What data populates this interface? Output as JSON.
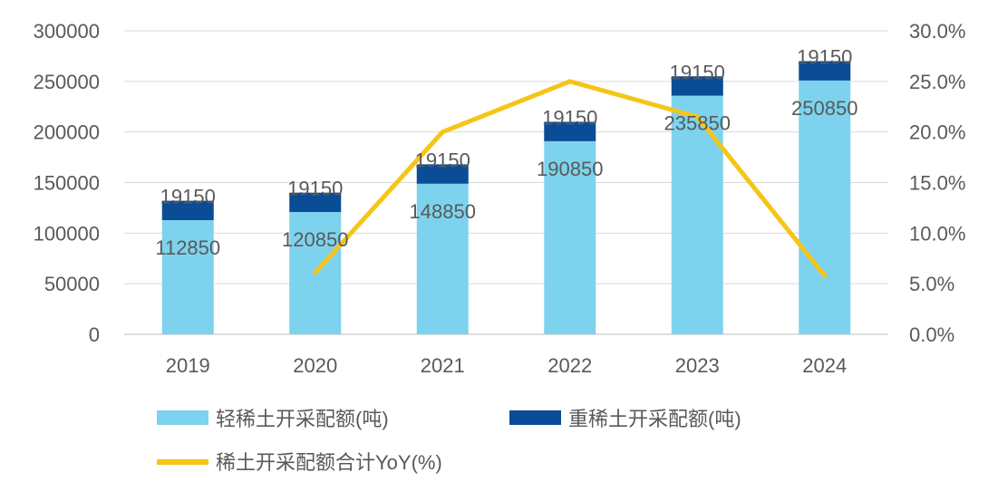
{
  "chart_data": {
    "type": "bar",
    "stacked": true,
    "categories": [
      "2019",
      "2020",
      "2021",
      "2022",
      "2023",
      "2024"
    ],
    "series": [
      {
        "name": "轻稀土开采配额(吨)",
        "type": "bar",
        "axis": "left",
        "color": "#7dd3ee",
        "values": [
          112850,
          120850,
          148850,
          190850,
          235850,
          250850
        ],
        "labels": [
          "112850",
          "120850",
          "148850",
          "190850",
          "235850",
          "250850"
        ]
      },
      {
        "name": "重稀土开采配额(吨)",
        "type": "bar",
        "axis": "left",
        "color": "#0a4c96",
        "values": [
          19150,
          19150,
          19150,
          19150,
          19150,
          19150
        ],
        "labels": [
          "19150",
          "19150",
          "19150",
          "19150",
          "19150",
          "19150"
        ]
      },
      {
        "name": "稀土开采配额合计YoY(%)",
        "type": "line",
        "axis": "right",
        "color": "#f5c518",
        "values": [
          null,
          6.1,
          20.0,
          25.0,
          21.5,
          5.8
        ]
      }
    ],
    "y_left": {
      "min": 0,
      "max": 300000,
      "ticks": [
        "0",
        "50000",
        "100000",
        "150000",
        "200000",
        "250000",
        "300000"
      ]
    },
    "y_right": {
      "min": 0,
      "max": 30,
      "ticks": [
        "0.0%",
        "5.0%",
        "10.0%",
        "15.0%",
        "20.0%",
        "25.0%",
        "30.0%"
      ]
    },
    "grid": true,
    "legend_position": "bottom"
  }
}
